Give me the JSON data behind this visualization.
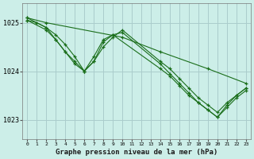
{
  "title": "Graphe pression niveau de la mer (hPa)",
  "background_color": "#cceee8",
  "grid_color": "#aacccc",
  "line_color": "#1a6e1a",
  "xlim": [
    -0.5,
    23.5
  ],
  "ylim": [
    1022.6,
    1025.4
  ],
  "yticks": [
    1023,
    1024,
    1025
  ],
  "xticks": [
    0,
    1,
    2,
    3,
    4,
    5,
    6,
    7,
    8,
    9,
    10,
    11,
    12,
    13,
    14,
    15,
    16,
    17,
    18,
    19,
    20,
    21,
    22,
    23
  ],
  "series": [
    {
      "x": [
        0,
        2,
        10,
        14,
        19,
        23
      ],
      "y": [
        1025.1,
        1025.0,
        1024.7,
        1024.4,
        1024.05,
        1023.75
      ]
    },
    {
      "x": [
        0,
        1,
        2,
        3,
        4,
        5,
        6,
        7,
        8,
        9,
        10,
        14,
        15,
        16,
        17,
        18,
        19,
        20,
        21,
        22,
        23
      ],
      "y": [
        1025.05,
        1025.0,
        1024.9,
        1024.75,
        1024.55,
        1024.3,
        1024.0,
        1024.2,
        1024.5,
        1024.7,
        1024.85,
        1024.2,
        1024.05,
        1023.85,
        1023.65,
        1023.45,
        1023.3,
        1023.15,
        1023.35,
        1023.5,
        1023.65
      ]
    },
    {
      "x": [
        0,
        2,
        3,
        4,
        5,
        6,
        7,
        8,
        9,
        10,
        14,
        15,
        16,
        17,
        18,
        19,
        20,
        21,
        22,
        23
      ],
      "y": [
        1025.05,
        1024.85,
        1024.65,
        1024.4,
        1024.2,
        1024.0,
        1024.2,
        1024.6,
        1024.75,
        1024.8,
        1024.15,
        1023.95,
        1023.75,
        1023.55,
        1023.35,
        1023.2,
        1023.05,
        1023.25,
        1023.45,
        1023.6
      ]
    },
    {
      "x": [
        0,
        2,
        3,
        4,
        5,
        6,
        7,
        8,
        9,
        14,
        15,
        16,
        17,
        18,
        19,
        20,
        21,
        22,
        23
      ],
      "y": [
        1025.1,
        1024.9,
        1024.65,
        1024.4,
        1024.15,
        1024.0,
        1024.3,
        1024.65,
        1024.75,
        1024.05,
        1023.9,
        1023.7,
        1023.5,
        1023.35,
        1023.2,
        1023.05,
        1023.3,
        1023.5,
        1023.65
      ]
    }
  ]
}
